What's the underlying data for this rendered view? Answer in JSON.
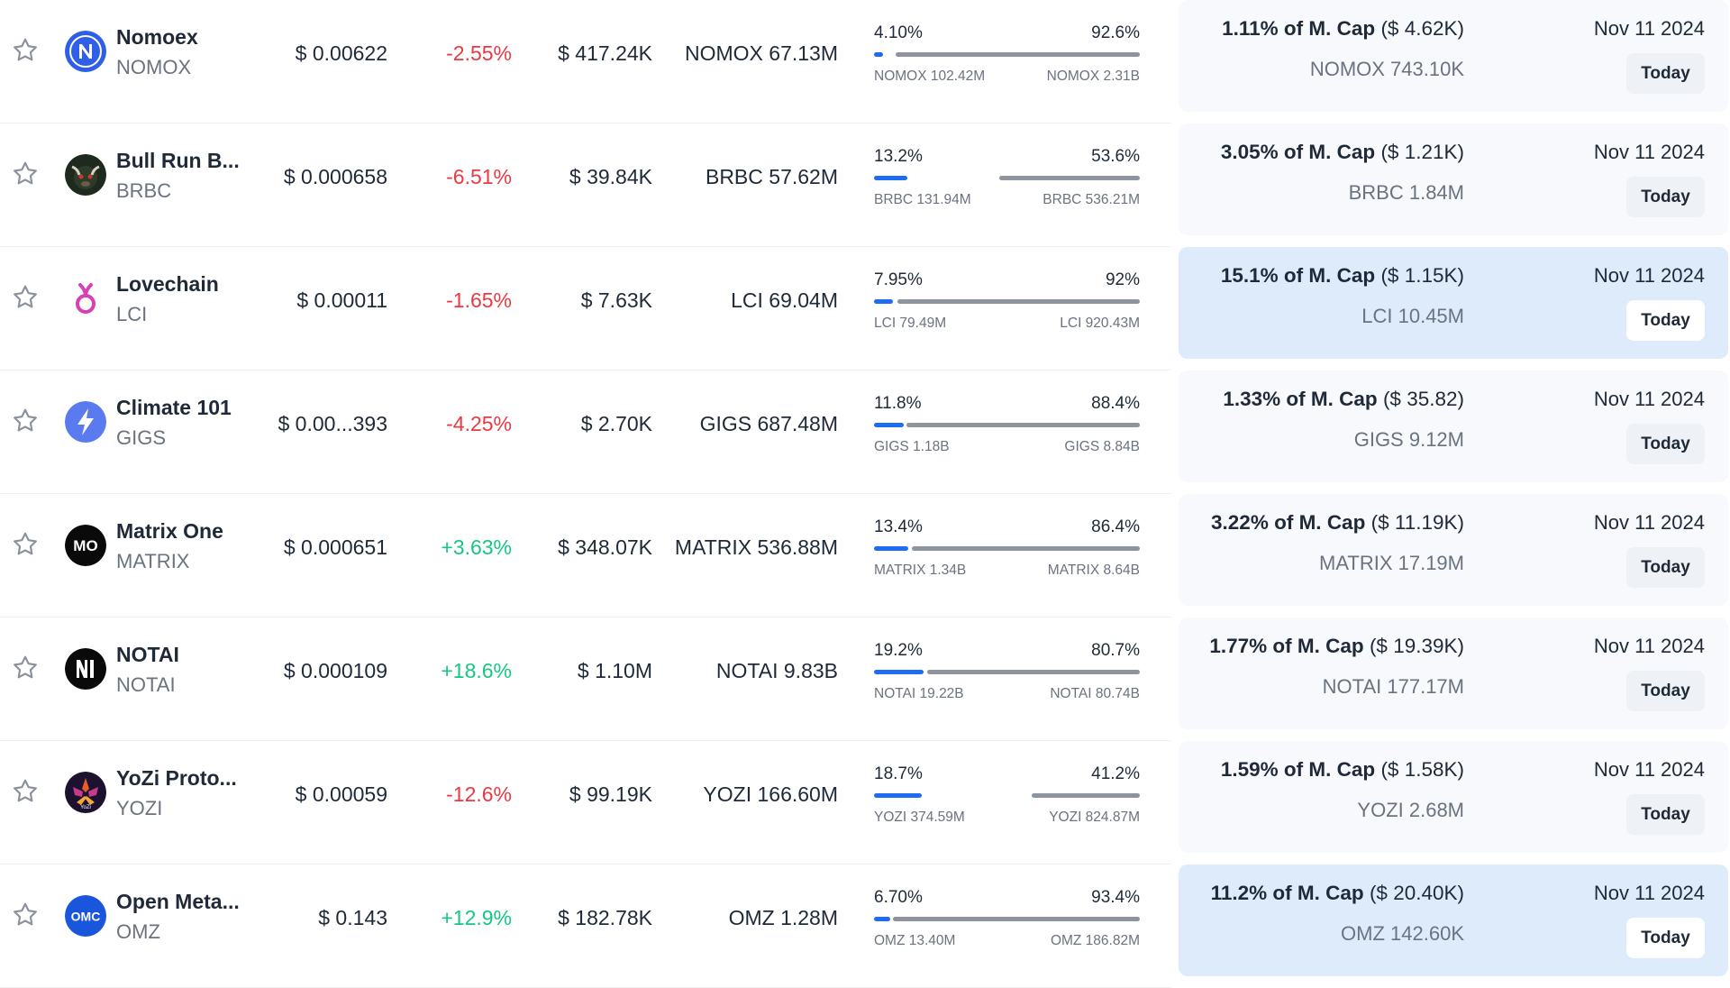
{
  "colors": {
    "negative": "#ea3943",
    "positive": "#16c784",
    "bar_unlocked": "#1e6cf2",
    "bar_locked": "#8d949e",
    "card": "#f7f9fc",
    "card_highlight": "#deebfb"
  },
  "rows": [
    {
      "name": "Nomoex",
      "symbol": "NOMOX",
      "logo_icon": "nomoex-n-icon",
      "price": "$ 0.00622",
      "change": "-2.55%",
      "change_dir": "neg",
      "volume": "$ 417.24K",
      "circ_supply": "NOMOX 67.13M",
      "unlocked_pct": "4.10%",
      "locked_pct": "92.6%",
      "unlocked_amt": "NOMOX 102.42M",
      "total_amt": "NOMOX 2.31B",
      "mcap_pct": "1.11% of M. Cap",
      "mcap_usd": "($ 4.62K)",
      "unlock_amount": "NOMOX 743.10K",
      "date": "Nov 11 2024",
      "today": "Today",
      "highlight": false
    },
    {
      "name": "Bull Run B...",
      "symbol": "BRBC",
      "logo_icon": "bull-run-icon",
      "price": "$ 0.000658",
      "change": "-6.51%",
      "change_dir": "neg",
      "volume": "$ 39.84K",
      "circ_supply": "BRBC 57.62M",
      "unlocked_pct": "13.2%",
      "locked_pct": "53.6%",
      "unlocked_amt": "BRBC 131.94M",
      "total_amt": "BRBC 536.21M",
      "mcap_pct": "3.05% of M. Cap",
      "mcap_usd": "($ 1.21K)",
      "unlock_amount": "BRBC 1.84M",
      "date": "Nov 11 2024",
      "today": "Today",
      "highlight": false
    },
    {
      "name": "Lovechain",
      "symbol": "LCI",
      "logo_icon": "lovechain-icon",
      "price": "$ 0.00011",
      "change": "-1.65%",
      "change_dir": "neg",
      "volume": "$ 7.63K",
      "circ_supply": "LCI 69.04M",
      "unlocked_pct": "7.95%",
      "locked_pct": "92%",
      "unlocked_amt": "LCI 79.49M",
      "total_amt": "LCI 920.43M",
      "mcap_pct": "15.1% of M. Cap",
      "mcap_usd": "($ 1.15K)",
      "unlock_amount": "LCI 10.45M",
      "date": "Nov 11 2024",
      "today": "Today",
      "highlight": true
    },
    {
      "name": "Climate 101",
      "symbol": "GIGS",
      "logo_icon": "lightning-bolt-icon",
      "price": "$ 0.00...393",
      "change": "-4.25%",
      "change_dir": "neg",
      "volume": "$ 2.70K",
      "circ_supply": "GIGS 687.48M",
      "unlocked_pct": "11.8%",
      "locked_pct": "88.4%",
      "unlocked_amt": "GIGS 1.18B",
      "total_amt": "GIGS 8.84B",
      "mcap_pct": "1.33% of M. Cap",
      "mcap_usd": "($ 35.82)",
      "unlock_amount": "GIGS 9.12M",
      "date": "Nov 11 2024",
      "today": "Today",
      "highlight": false
    },
    {
      "name": "Matrix One",
      "symbol": "MATRIX",
      "logo_icon": "matrix-one-icon",
      "logo_text": "MO",
      "price": "$ 0.000651",
      "change": "+3.63%",
      "change_dir": "pos",
      "volume": "$ 348.07K",
      "circ_supply": "MATRIX 536.88M",
      "unlocked_pct": "13.4%",
      "locked_pct": "86.4%",
      "unlocked_amt": "MATRIX 1.34B",
      "total_amt": "MATRIX 8.64B",
      "mcap_pct": "3.22% of M. Cap",
      "mcap_usd": "($ 11.19K)",
      "unlock_amount": "MATRIX 17.19M",
      "date": "Nov 11 2024",
      "today": "Today",
      "highlight": false
    },
    {
      "name": "NOTAI",
      "symbol": "NOTAI",
      "logo_icon": "notai-icon",
      "price": "$ 0.000109",
      "change": "+18.6%",
      "change_dir": "pos",
      "volume": "$ 1.10M",
      "circ_supply": "NOTAI 9.83B",
      "unlocked_pct": "19.2%",
      "locked_pct": "80.7%",
      "unlocked_amt": "NOTAI 19.22B",
      "total_amt": "NOTAI 80.74B",
      "mcap_pct": "1.77% of M. Cap",
      "mcap_usd": "($ 19.39K)",
      "unlock_amount": "NOTAI 177.17M",
      "date": "Nov 11 2024",
      "today": "Today",
      "highlight": false
    },
    {
      "name": "YoZi Proto...",
      "symbol": "YOZI",
      "logo_icon": "yozi-protocol-icon",
      "price": "$ 0.00059",
      "change": "-12.6%",
      "change_dir": "neg",
      "volume": "$ 99.19K",
      "circ_supply": "YOZI 166.60M",
      "unlocked_pct": "18.7%",
      "locked_pct": "41.2%",
      "unlocked_amt": "YOZI 374.59M",
      "total_amt": "YOZI 824.87M",
      "mcap_pct": "1.59% of M. Cap",
      "mcap_usd": "($ 1.58K)",
      "unlock_amount": "YOZI 2.68M",
      "date": "Nov 11 2024",
      "today": "Today",
      "highlight": false
    },
    {
      "name": "Open Meta...",
      "symbol": "OMZ",
      "logo_icon": "open-meta-icon",
      "logo_text": "OMC",
      "price": "$ 0.143",
      "change": "+12.9%",
      "change_dir": "pos",
      "volume": "$ 182.78K",
      "circ_supply": "OMZ 1.28M",
      "unlocked_pct": "6.70%",
      "locked_pct": "93.4%",
      "unlocked_amt": "OMZ 13.40M",
      "total_amt": "OMZ 186.82M",
      "mcap_pct": "11.2% of M. Cap",
      "mcap_usd": "($ 20.40K)",
      "unlock_amount": "OMZ 142.60K",
      "date": "Nov 11 2024",
      "today": "Today",
      "highlight": true
    }
  ]
}
